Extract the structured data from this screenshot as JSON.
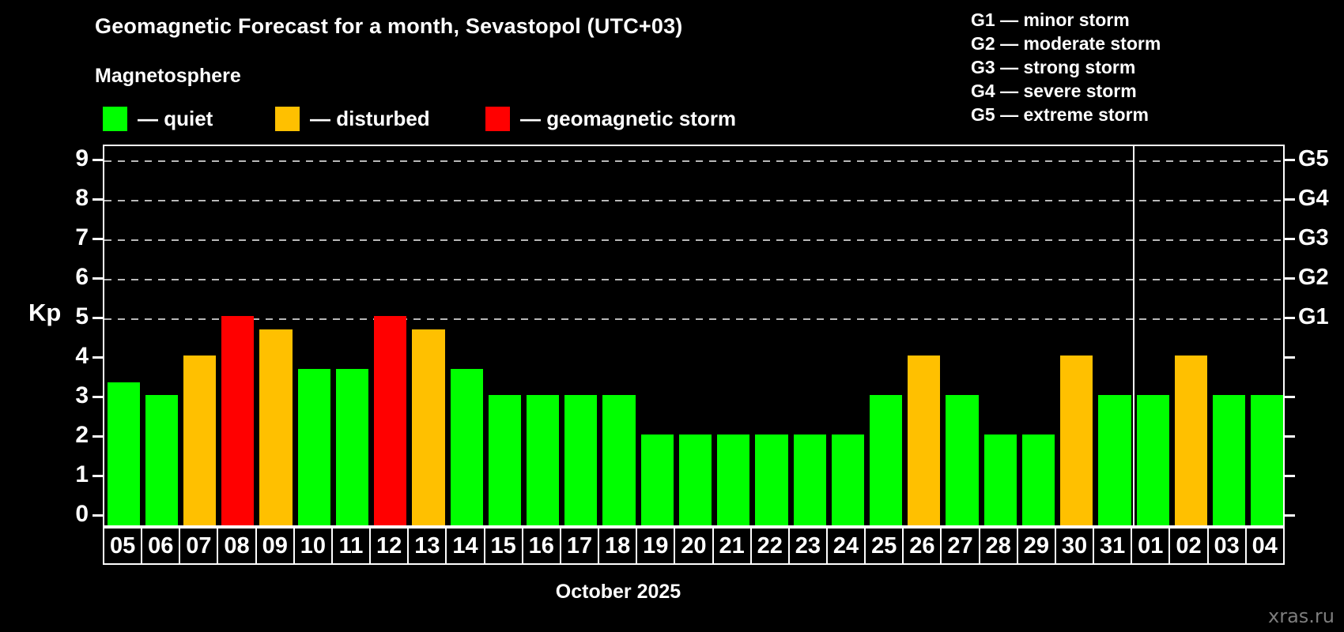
{
  "header": {
    "title": "Geomagnetic Forecast for a month, Sevastopol (UTC+03)",
    "subtitle": "Magnetosphere"
  },
  "legend": [
    {
      "label": "— quiet",
      "status": "quiet",
      "color": "#00ff00",
      "x": 130
    },
    {
      "label": "— disturbed",
      "status": "disturbed",
      "color": "#ffc000",
      "x": 348
    },
    {
      "label": "— geomagnetic storm",
      "status": "storm",
      "color": "#ff0000",
      "x": 614
    }
  ],
  "g_legend": [
    "G1 — minor storm",
    "G2 — moderate storm",
    "G3 — strong storm",
    "G4 — severe storm",
    "G5 — extreme storm"
  ],
  "chart_data": {
    "type": "bar",
    "title": "Geomagnetic Forecast for a month, Sevastopol (UTC+03)",
    "ylabel": "Kp",
    "xlabel": "October 2025",
    "ylim": [
      0,
      9
    ],
    "yticks": [
      0,
      1,
      2,
      3,
      4,
      5,
      6,
      7,
      8,
      9
    ],
    "gridlines_at": [
      5,
      6,
      7,
      8,
      9
    ],
    "grid": true,
    "legend_position": "top",
    "right_axis_labels": [
      {
        "kp": 5,
        "label": "G1"
      },
      {
        "kp": 6,
        "label": "G2"
      },
      {
        "kp": 7,
        "label": "G3"
      },
      {
        "kp": 8,
        "label": "G4"
      },
      {
        "kp": 9,
        "label": "G5"
      }
    ],
    "month_separator_after_index": 26,
    "colors": {
      "quiet": "#00ff00",
      "disturbed": "#ffc000",
      "storm": "#ff0000"
    },
    "days": [
      {
        "day": "05",
        "kp": 3.33,
        "status": "quiet"
      },
      {
        "day": "06",
        "kp": 3.0,
        "status": "quiet"
      },
      {
        "day": "07",
        "kp": 4.0,
        "status": "disturbed"
      },
      {
        "day": "08",
        "kp": 5.0,
        "status": "storm"
      },
      {
        "day": "09",
        "kp": 4.67,
        "status": "disturbed"
      },
      {
        "day": "10",
        "kp": 3.67,
        "status": "quiet"
      },
      {
        "day": "11",
        "kp": 3.67,
        "status": "quiet"
      },
      {
        "day": "12",
        "kp": 5.0,
        "status": "storm"
      },
      {
        "day": "13",
        "kp": 4.67,
        "status": "disturbed"
      },
      {
        "day": "14",
        "kp": 3.67,
        "status": "quiet"
      },
      {
        "day": "15",
        "kp": 3.0,
        "status": "quiet"
      },
      {
        "day": "16",
        "kp": 3.0,
        "status": "quiet"
      },
      {
        "day": "17",
        "kp": 3.0,
        "status": "quiet"
      },
      {
        "day": "18",
        "kp": 3.0,
        "status": "quiet"
      },
      {
        "day": "19",
        "kp": 2.0,
        "status": "quiet"
      },
      {
        "day": "20",
        "kp": 2.0,
        "status": "quiet"
      },
      {
        "day": "21",
        "kp": 2.0,
        "status": "quiet"
      },
      {
        "day": "22",
        "kp": 2.0,
        "status": "quiet"
      },
      {
        "day": "23",
        "kp": 2.0,
        "status": "quiet"
      },
      {
        "day": "24",
        "kp": 2.0,
        "status": "quiet"
      },
      {
        "day": "25",
        "kp": 3.0,
        "status": "quiet"
      },
      {
        "day": "26",
        "kp": 4.0,
        "status": "disturbed"
      },
      {
        "day": "27",
        "kp": 3.0,
        "status": "quiet"
      },
      {
        "day": "28",
        "kp": 2.0,
        "status": "quiet"
      },
      {
        "day": "29",
        "kp": 2.0,
        "status": "quiet"
      },
      {
        "day": "30",
        "kp": 4.0,
        "status": "disturbed"
      },
      {
        "day": "31",
        "kp": 3.0,
        "status": "quiet"
      },
      {
        "day": "01",
        "kp": 3.0,
        "status": "quiet"
      },
      {
        "day": "02",
        "kp": 4.0,
        "status": "disturbed"
      },
      {
        "day": "03",
        "kp": 3.0,
        "status": "quiet"
      },
      {
        "day": "04",
        "kp": 3.0,
        "status": "quiet"
      }
    ]
  },
  "watermark": "xras.ru"
}
